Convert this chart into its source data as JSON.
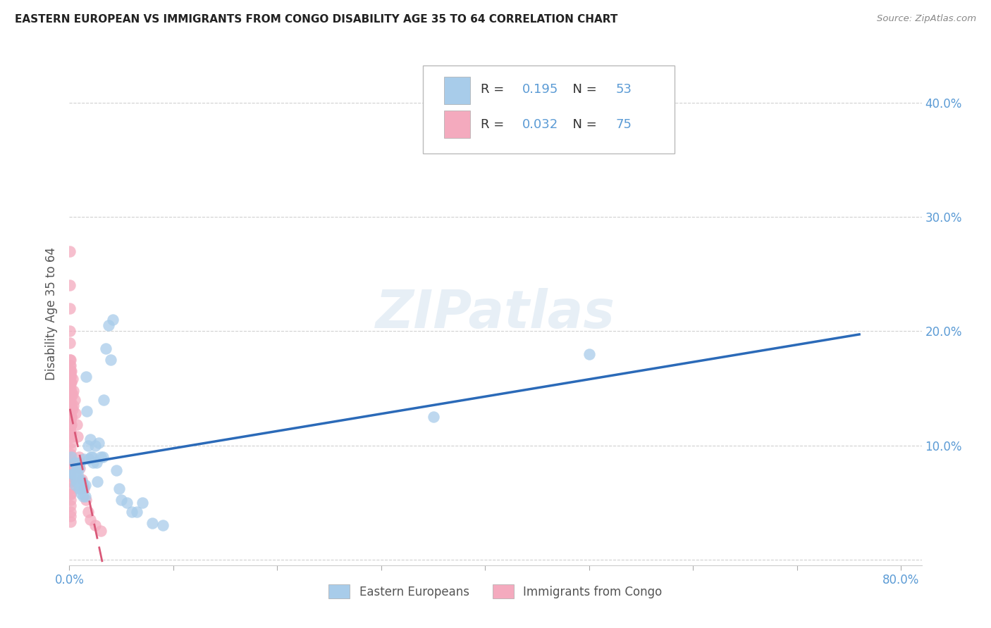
{
  "title": "EASTERN EUROPEAN VS IMMIGRANTS FROM CONGO DISABILITY AGE 35 TO 64 CORRELATION CHART",
  "source": "Source: ZipAtlas.com",
  "ylabel": "Disability Age 35 to 64",
  "xlim": [
    0,
    0.82
  ],
  "ylim": [
    -0.005,
    0.435
  ],
  "yticks": [
    0.0,
    0.1,
    0.2,
    0.3,
    0.4
  ],
  "ytick_labels": [
    "",
    "10.0%",
    "20.0%",
    "30.0%",
    "40.0%"
  ],
  "xticks": [
    0.0,
    0.1,
    0.2,
    0.3,
    0.4,
    0.5,
    0.6,
    0.7,
    0.8
  ],
  "series1_label": "Eastern Europeans",
  "series1_R": "0.195",
  "series1_N": "53",
  "series1_color": "#A8CCEA",
  "series1_line_color": "#2B6AB8",
  "series2_label": "Immigrants from Congo",
  "series2_R": "0.032",
  "series2_N": "75",
  "series2_color": "#F4AABE",
  "series2_line_color": "#D95878",
  "watermark": "ZIPatlas",
  "background_color": "#ffffff",
  "grid_color": "#d0d0d0",
  "tick_label_color": "#5B9BD5",
  "legend_R_color": "#000000",
  "legend_val_color": "#5B9BD5",
  "eastern_europeans_x": [
    0.002,
    0.003,
    0.004,
    0.005,
    0.005,
    0.006,
    0.006,
    0.007,
    0.007,
    0.008,
    0.008,
    0.009,
    0.009,
    0.01,
    0.01,
    0.011,
    0.011,
    0.012,
    0.013,
    0.013,
    0.014,
    0.015,
    0.015,
    0.016,
    0.017,
    0.018,
    0.019,
    0.02,
    0.021,
    0.022,
    0.023,
    0.025,
    0.026,
    0.027,
    0.028,
    0.03,
    0.032,
    0.033,
    0.035,
    0.038,
    0.04,
    0.042,
    0.045,
    0.048,
    0.05,
    0.055,
    0.06,
    0.065,
    0.07,
    0.08,
    0.09,
    0.35,
    0.5
  ],
  "eastern_europeans_y": [
    0.09,
    0.075,
    0.075,
    0.085,
    0.075,
    0.065,
    0.07,
    0.08,
    0.068,
    0.075,
    0.068,
    0.08,
    0.062,
    0.085,
    0.07,
    0.062,
    0.058,
    0.068,
    0.065,
    0.055,
    0.088,
    0.065,
    0.055,
    0.16,
    0.13,
    0.1,
    0.088,
    0.105,
    0.09,
    0.09,
    0.085,
    0.1,
    0.085,
    0.068,
    0.102,
    0.09,
    0.09,
    0.14,
    0.185,
    0.205,
    0.175,
    0.21,
    0.078,
    0.062,
    0.052,
    0.05,
    0.042,
    0.042,
    0.05,
    0.032,
    0.03,
    0.125,
    0.18
  ],
  "congo_x": [
    0.0005,
    0.0005,
    0.0005,
    0.0005,
    0.0006,
    0.0006,
    0.0007,
    0.0007,
    0.0007,
    0.0008,
    0.0008,
    0.0009,
    0.0009,
    0.001,
    0.001,
    0.001,
    0.001,
    0.001,
    0.001,
    0.001,
    0.001,
    0.001,
    0.001,
    0.001,
    0.001,
    0.001,
    0.001,
    0.001,
    0.001,
    0.001,
    0.001,
    0.001,
    0.001,
    0.001,
    0.001,
    0.001,
    0.001,
    0.001,
    0.001,
    0.0012,
    0.0012,
    0.0013,
    0.0014,
    0.0015,
    0.0015,
    0.0016,
    0.0017,
    0.002,
    0.002,
    0.002,
    0.002,
    0.002,
    0.003,
    0.003,
    0.003,
    0.004,
    0.004,
    0.005,
    0.006,
    0.007,
    0.008,
    0.009,
    0.01,
    0.012,
    0.014,
    0.016,
    0.018,
    0.02,
    0.025,
    0.03,
    0.001,
    0.001,
    0.001,
    0.001,
    0.001
  ],
  "congo_y": [
    0.27,
    0.24,
    0.22,
    0.2,
    0.19,
    0.17,
    0.175,
    0.165,
    0.155,
    0.16,
    0.145,
    0.16,
    0.15,
    0.155,
    0.148,
    0.142,
    0.138,
    0.133,
    0.128,
    0.122,
    0.117,
    0.112,
    0.107,
    0.102,
    0.097,
    0.092,
    0.088,
    0.083,
    0.078,
    0.073,
    0.068,
    0.062,
    0.057,
    0.052,
    0.047,
    0.042,
    0.038,
    0.033,
    0.17,
    0.162,
    0.155,
    0.148,
    0.14,
    0.133,
    0.125,
    0.118,
    0.11,
    0.165,
    0.155,
    0.145,
    0.135,
    0.125,
    0.158,
    0.145,
    0.132,
    0.148,
    0.135,
    0.14,
    0.128,
    0.118,
    0.108,
    0.09,
    0.08,
    0.07,
    0.062,
    0.052,
    0.042,
    0.035,
    0.03,
    0.025,
    0.175,
    0.165,
    0.082,
    0.068,
    0.058
  ]
}
